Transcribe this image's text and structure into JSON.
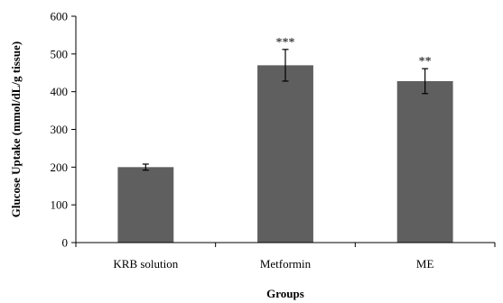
{
  "chart_data": {
    "type": "bar",
    "title": "",
    "xlabel": "Groups",
    "ylabel": "Glucose Uptake (mmol/dL/g tissue)",
    "ylim": [
      0,
      600
    ],
    "yticks": [
      0,
      100,
      200,
      300,
      400,
      500,
      600
    ],
    "categories": [
      "KRB solution",
      "Metformin",
      "ME"
    ],
    "values": [
      200,
      470,
      428
    ],
    "errors": [
      8,
      42,
      33
    ],
    "significance": [
      "",
      "***",
      "**"
    ],
    "grid": false,
    "bar_color": "#5f5f5f"
  }
}
